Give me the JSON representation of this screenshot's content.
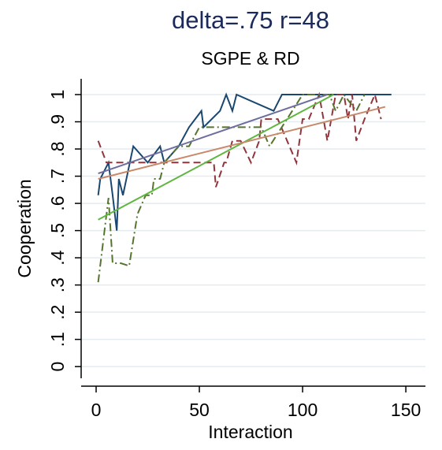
{
  "chart_data": {
    "type": "line",
    "title": "delta=.75 r=48",
    "subtitle": "SGPE & RD",
    "x_label": "Interaction",
    "y_label": "Cooperation",
    "xlim": [
      -7.25,
      159.5
    ],
    "ylim": [
      -0.043,
      1.058
    ],
    "xticks": [
      0,
      50,
      100,
      150
    ],
    "yticks": [
      0,
      {
        "value": 0.1,
        "label": ".1"
      },
      {
        "value": 0.2,
        "label": ".2"
      },
      {
        "value": 0.3,
        "label": ".3"
      },
      {
        "value": 0.4,
        "label": ".4"
      },
      {
        "value": 0.5,
        "label": ".5"
      },
      {
        "value": 0.6,
        "label": ".6"
      },
      {
        "value": 0.7,
        "label": ".7"
      },
      {
        "value": 0.8,
        "label": ".8"
      },
      {
        "value": 0.9,
        "label": ".9"
      },
      1
    ],
    "grid": true,
    "series": [
      {
        "color": "#1a476f",
        "style": "solid",
        "x": [
          1,
          2,
          6,
          8,
          10,
          11,
          13,
          18,
          25,
          31,
          33,
          40,
          45,
          51,
          52,
          60,
          63,
          66,
          68,
          86,
          90,
          143
        ],
        "values": [
          0.63,
          0.69,
          0.75,
          0.63,
          0.5,
          0.69,
          0.63,
          0.81,
          0.75,
          0.81,
          0.75,
          0.81,
          0.88,
          0.94,
          0.88,
          0.94,
          1,
          0.94,
          1,
          0.94,
          1,
          1
        ]
      },
      {
        "color": "#90353b",
        "style": "dash",
        "x": [
          1,
          5,
          10,
          50,
          57,
          58,
          62,
          63,
          66,
          70,
          75,
          79,
          80,
          85,
          88,
          97,
          100,
          103,
          108,
          112,
          116,
          120,
          122,
          124,
          126,
          130,
          135,
          138
        ],
        "values": [
          0.83,
          0.75,
          0.75,
          0.75,
          0.75,
          0.66,
          0.75,
          0.75,
          0.83,
          0.83,
          0.75,
          0.83,
          0.91,
          0.91,
          0.91,
          0.75,
          0.91,
          0.91,
          1,
          0.83,
          1,
          1,
          0.91,
          1,
          0.83,
          0.91,
          1,
          0.91
        ]
      },
      {
        "color": "#55752f",
        "style": "dashdot",
        "x": [
          1,
          6,
          8,
          12,
          16,
          20,
          24,
          27,
          28,
          31,
          33,
          40,
          45,
          50,
          60,
          80,
          84,
          95,
          100,
          113,
          116,
          120,
          126,
          130
        ],
        "values": [
          0.31,
          0.62,
          0.38,
          0.38,
          0.37,
          0.56,
          0.63,
          0.63,
          0.69,
          0.69,
          0.75,
          0.81,
          0.81,
          0.88,
          0.88,
          0.88,
          0.81,
          0.94,
          1,
          1,
          0.94,
          1,
          0.94,
          1
        ]
      },
      {
        "color": "#6e6e9e",
        "style": "solid",
        "x": [
          1,
          112
        ],
        "values": [
          0.71,
          1.0
        ]
      },
      {
        "color": "#5fb640",
        "style": "solid",
        "x": [
          1,
          115
        ],
        "values": [
          0.54,
          1.0
        ]
      },
      {
        "color": "#c8886a",
        "style": "solid",
        "x": [
          1,
          140
        ],
        "values": [
          0.69,
          0.955
        ]
      }
    ]
  }
}
